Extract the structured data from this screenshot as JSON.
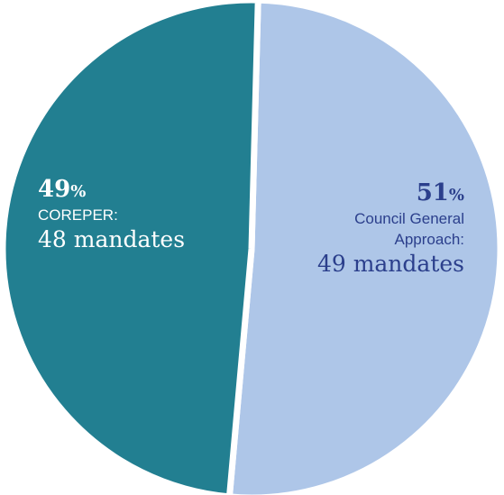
{
  "chart_data": {
    "type": "pie",
    "slices": [
      {
        "id": "corep",
        "category": "COREPER:",
        "percent": 49,
        "value_text": "48 mandates",
        "value": 48,
        "color": "#227f91",
        "label_color": "#ffffff"
      },
      {
        "id": "council",
        "category": "Council General Approach:",
        "category_lines": [
          "Council General",
          "Approach:"
        ],
        "percent": 51,
        "value_text": "49 mandates",
        "value": 49,
        "color": "#aec6e8",
        "label_color": "#2b3f8c"
      }
    ],
    "percent_sign": "%",
    "title": "",
    "legend": "none"
  }
}
